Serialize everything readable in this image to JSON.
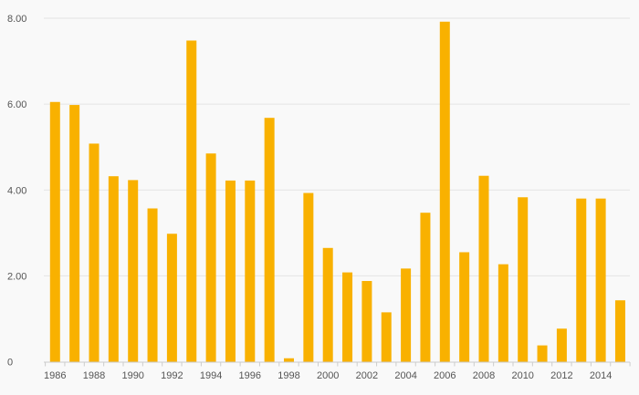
{
  "chart_data": {
    "type": "bar",
    "title": "",
    "xlabel": "",
    "ylabel": "",
    "ylim": [
      0,
      8
    ],
    "y_ticks": [
      {
        "value": 0,
        "label": "0"
      },
      {
        "value": 2,
        "label": "2.00"
      },
      {
        "value": 4,
        "label": "4.00"
      },
      {
        "value": 6,
        "label": "6.00"
      },
      {
        "value": 8,
        "label": "8.00"
      }
    ],
    "categories": [
      "1986",
      "1987",
      "1988",
      "1989",
      "1990",
      "1991",
      "1992",
      "1993",
      "1994",
      "1995",
      "1996",
      "1997",
      "1998",
      "1999",
      "2000",
      "2001",
      "2002",
      "2003",
      "2004",
      "2005",
      "2006",
      "2007",
      "2008",
      "2009",
      "2010",
      "2011",
      "2012",
      "2013",
      "2014",
      "2015"
    ],
    "x_tick_labels": [
      "1986",
      "1988",
      "1990",
      "1992",
      "1994",
      "1996",
      "1998",
      "2000",
      "2002",
      "2004",
      "2006",
      "2008",
      "2010",
      "2012",
      "2014"
    ],
    "values": [
      6.05,
      5.98,
      5.08,
      4.32,
      4.23,
      3.57,
      2.98,
      7.48,
      4.85,
      4.22,
      4.22,
      5.68,
      0.08,
      3.93,
      2.65,
      2.08,
      1.88,
      1.15,
      2.17,
      3.47,
      7.92,
      2.55,
      4.33,
      2.27,
      3.83,
      0.38,
      0.77,
      3.8,
      3.8,
      1.43
    ],
    "grid": true,
    "colors": {
      "bar": "#f9b100",
      "grid": "#e4e4e4",
      "axis": "#cccccc",
      "background": "#f9f9f9"
    }
  }
}
